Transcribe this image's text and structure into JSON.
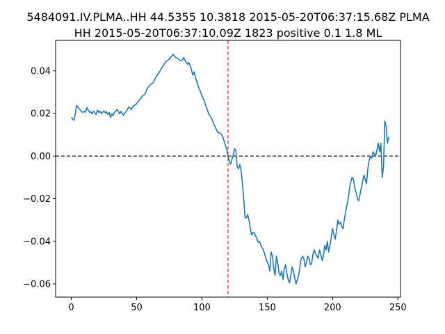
{
  "chart_data": {
    "type": "line",
    "title_lines": [
      "5484091.IV.PLMA..HH 44.5355 10.3818 2015-05-20T06:37:15.68Z PLMA",
      "HH 2015-05-20T06:37:10.09Z 1823 positive 0.1 1.8 ML"
    ],
    "xlabel": "",
    "ylabel": "",
    "xlim": [
      -12,
      252
    ],
    "ylim": [
      -0.0662,
      0.0543
    ],
    "x_ticks": [
      0,
      50,
      100,
      150,
      200,
      250
    ],
    "x_tick_labels": [
      "0",
      "50",
      "100",
      "150",
      "200",
      "250"
    ],
    "y_ticks": [
      -0.06,
      -0.04,
      -0.02,
      0.0,
      0.02,
      0.04
    ],
    "y_tick_labels": [
      "−0.06",
      "−0.04",
      "−0.02",
      "0.00",
      "0.02",
      "0.04"
    ],
    "grid": false,
    "line_color": "#1f77b4",
    "reference_lines": {
      "horizontal_zero": {
        "y": 0,
        "color": "#000000",
        "style": "dashed"
      },
      "vertical_pick": {
        "x": 120,
        "color": "#d62728",
        "style": "dashed"
      }
    },
    "series": [
      {
        "x_start": 0,
        "x_step": 1,
        "values": [
          0.0182,
          0.0175,
          0.0168,
          0.0195,
          0.0238,
          0.023,
          0.0222,
          0.0215,
          0.0208,
          0.0205,
          0.021,
          0.0206,
          0.0228,
          0.0215,
          0.0205,
          0.0208,
          0.0198,
          0.021,
          0.0204,
          0.0195,
          0.0215,
          0.0205,
          0.021,
          0.02,
          0.0205,
          0.0212,
          0.0202,
          0.0208,
          0.0195,
          0.0205,
          0.018,
          0.0198,
          0.019,
          0.0205,
          0.021,
          0.0218,
          0.021,
          0.0198,
          0.021,
          0.02,
          0.0192,
          0.0202,
          0.021,
          0.022,
          0.023,
          0.0225,
          0.0218,
          0.0232,
          0.0238,
          0.024,
          0.0245,
          0.0255,
          0.0262,
          0.027,
          0.0278,
          0.0285,
          0.0288,
          0.03,
          0.0315,
          0.0325,
          0.033,
          0.0338,
          0.034,
          0.0348,
          0.0362,
          0.0372,
          0.0382,
          0.039,
          0.04,
          0.0412,
          0.042,
          0.043,
          0.044,
          0.0445,
          0.045,
          0.0455,
          0.0462,
          0.047,
          0.0478,
          0.047,
          0.0462,
          0.046,
          0.0455,
          0.045,
          0.0448,
          0.0452,
          0.0462,
          0.045,
          0.044,
          0.043,
          0.0438,
          0.0425,
          0.0405,
          0.038,
          0.0395,
          0.037,
          0.035,
          0.033,
          0.0315,
          0.03,
          0.0285,
          0.027,
          0.0255,
          0.0235,
          0.022,
          0.02,
          0.019,
          0.0182,
          0.0168,
          0.0152,
          0.0138,
          0.0125,
          0.0112,
          0.011,
          0.0108,
          0.0102,
          0.009,
          0.007,
          0.005,
          0.003,
          0.0,
          -0.0025,
          -0.0038,
          -0.0015,
          0.0005,
          0.0035,
          0.0025,
          -0.005,
          -0.006,
          -0.004,
          -0.007,
          -0.013,
          -0.02,
          -0.029,
          -0.029,
          -0.0275,
          -0.03,
          -0.034,
          -0.037,
          -0.036,
          -0.036,
          -0.0375,
          -0.0385,
          -0.0405,
          -0.04,
          -0.0415,
          -0.043,
          -0.044,
          -0.046,
          -0.048,
          -0.05,
          -0.051,
          -0.054,
          -0.045,
          -0.047,
          -0.053,
          -0.056,
          -0.047,
          -0.05,
          -0.055,
          -0.056,
          -0.054,
          -0.058,
          -0.053,
          -0.051,
          -0.055,
          -0.058,
          -0.0595,
          -0.056,
          -0.052,
          -0.054,
          -0.057,
          -0.06,
          -0.058,
          -0.056,
          -0.052,
          -0.048,
          -0.047,
          -0.048,
          -0.052,
          -0.05,
          -0.047,
          -0.048,
          -0.051,
          -0.0505,
          -0.046,
          -0.044,
          -0.046,
          -0.047,
          -0.048,
          -0.044,
          -0.046,
          -0.049,
          -0.047,
          -0.042,
          -0.044,
          -0.04,
          -0.045,
          -0.042,
          -0.038,
          -0.034,
          -0.037,
          -0.039,
          -0.035,
          -0.03,
          -0.032,
          -0.031,
          -0.033,
          -0.034,
          -0.03,
          -0.026,
          -0.023,
          -0.02,
          -0.015,
          -0.012,
          -0.01,
          -0.011,
          -0.015,
          -0.017,
          -0.02,
          -0.021,
          -0.018,
          -0.015,
          -0.012,
          -0.009,
          -0.011,
          -0.013,
          -0.006,
          -0.002,
          0.0,
          -0.001,
          0.002,
          0.001,
          0.0,
          0.003,
          0.006,
          0.002,
          0.006,
          -0.01,
          -0.005,
          0.0165,
          0.014,
          0.006,
          0.009
        ]
      }
    ]
  }
}
